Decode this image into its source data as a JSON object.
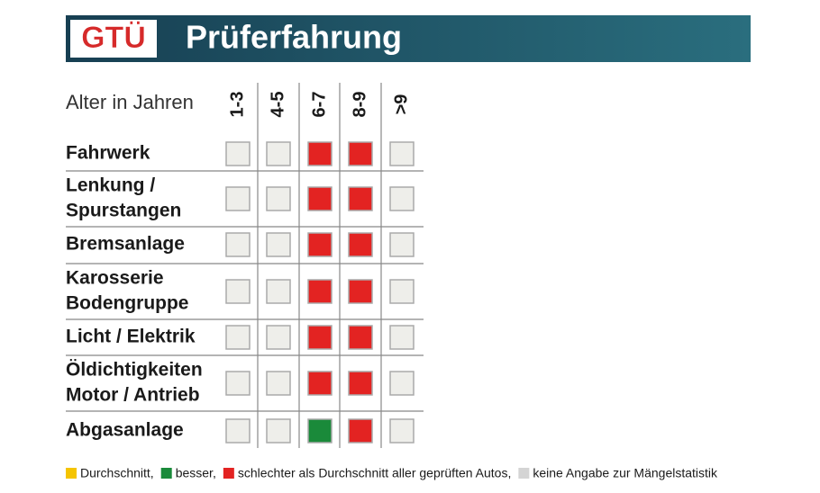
{
  "header": {
    "logo": "GTÜ",
    "title": "Prüferfahrung"
  },
  "table": {
    "corner": "Alter in Jahren",
    "columns": [
      "1-3",
      "4-5",
      "6-7",
      "8-9",
      ">9"
    ],
    "rows": [
      {
        "label": [
          "Fahrwerk"
        ],
        "cells": [
          "#eeeeea",
          "#eeeeea",
          "#e32322",
          "#e32322",
          "#eeeeea"
        ]
      },
      {
        "label": [
          "Lenkung /",
          "Spurstangen"
        ],
        "cells": [
          "#eeeeea",
          "#eeeeea",
          "#e32322",
          "#e32322",
          "#eeeeea"
        ]
      },
      {
        "label": [
          "Bremsanlage"
        ],
        "cells": [
          "#eeeeea",
          "#eeeeea",
          "#e32322",
          "#e32322",
          "#eeeeea"
        ]
      },
      {
        "label": [
          "Karosserie",
          "Bodengruppe"
        ],
        "cells": [
          "#eeeeea",
          "#eeeeea",
          "#e32322",
          "#e32322",
          "#eeeeea"
        ]
      },
      {
        "label": [
          "Licht / Elektrik"
        ],
        "cells": [
          "#eeeeea",
          "#eeeeea",
          "#e32322",
          "#e32322",
          "#eeeeea"
        ]
      },
      {
        "label": [
          "Öldichtigkeiten",
          "Motor / Antrieb"
        ],
        "cells": [
          "#eeeeea",
          "#eeeeea",
          "#e32322",
          "#e32322",
          "#eeeeea"
        ]
      },
      {
        "label": [
          "Abgasanlage"
        ],
        "cells": [
          "#eeeeea",
          "#eeeeea",
          "#1a8a3a",
          "#e32322",
          "#eeeeea"
        ]
      }
    ]
  },
  "legend": [
    {
      "color": "#f5c400",
      "label": "Durchschnitt,"
    },
    {
      "color": "#1a8a3a",
      "label": "besser,"
    },
    {
      "color": "#e32322",
      "label": "schlechter als Durchschnitt aller geprüften Autos,"
    },
    {
      "color": "#d4d4d4",
      "label": "keine Angabe zur Mängelstatistik"
    }
  ]
}
